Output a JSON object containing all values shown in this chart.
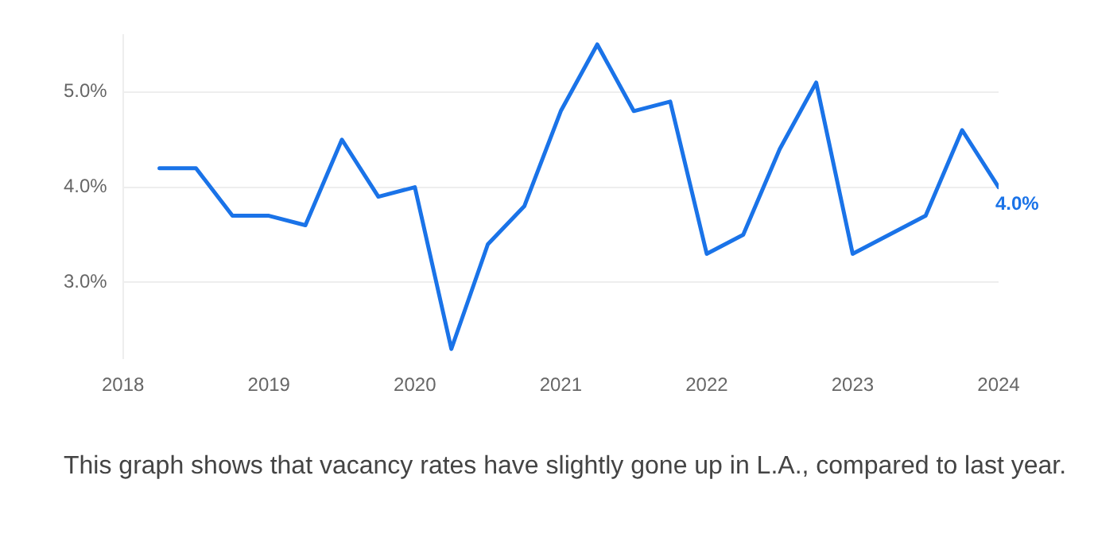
{
  "chart_data": {
    "type": "line",
    "x": [
      "2018-04",
      "2018-07",
      "2018-10",
      "2019-01",
      "2019-04",
      "2019-07",
      "2019-10",
      "2020-01",
      "2020-04",
      "2020-07",
      "2020-10",
      "2021-01",
      "2021-04",
      "2021-07",
      "2021-10",
      "2022-01",
      "2022-04",
      "2022-07",
      "2022-10",
      "2023-01",
      "2023-04",
      "2023-07",
      "2023-10",
      "2024-01"
    ],
    "series": [
      {
        "color": "#1a73e8",
        "values": [
          4.2,
          4.2,
          3.7,
          3.7,
          3.6,
          4.5,
          3.9,
          4.0,
          2.3,
          3.4,
          3.8,
          4.8,
          5.5,
          4.8,
          4.9,
          3.3,
          3.5,
          4.4,
          5.1,
          3.3,
          3.5,
          3.7,
          4.6,
          4.0
        ],
        "value_labels": [
          null,
          null,
          null,
          null,
          null,
          null,
          null,
          null,
          null,
          null,
          null,
          null,
          null,
          null,
          null,
          null,
          null,
          null,
          null,
          null,
          null,
          null,
          null,
          "4.0%"
        ]
      }
    ],
    "xlim": [
      "2018",
      "2024-01"
    ],
    "xticks": [
      "2018",
      "2019",
      "2020",
      "2021",
      "2022",
      "2023",
      "2024"
    ],
    "ylim": [
      2.2,
      5.6
    ],
    "yticks": [
      {
        "value": 3,
        "label": "3.0%"
      },
      {
        "value": 4,
        "label": "4.0%"
      },
      {
        "value": 5,
        "label": "5.0%"
      }
    ],
    "grid": "y",
    "legend": false,
    "marker": "none",
    "line_style": "solid",
    "annotations": [
      "This graph shows that vacancy rates have slightly gone up in L.A., compared to last year."
    ]
  }
}
